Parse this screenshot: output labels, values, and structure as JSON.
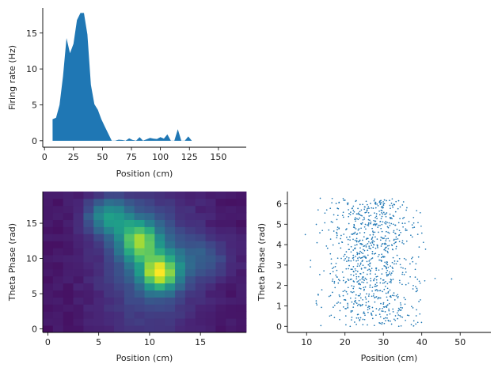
{
  "chart_data": [
    {
      "type": "area",
      "xlabel": "Position (cm)",
      "ylabel": "Firing rate (Hz)",
      "xlim": [
        -1.5,
        174
      ],
      "ylim": [
        -0.9,
        18.5
      ],
      "xticks": [
        0,
        25,
        50,
        75,
        100,
        125,
        150
      ],
      "yticks": [
        0,
        5,
        10,
        15
      ],
      "color": "#1f77b4",
      "x": [
        7,
        10,
        13,
        16,
        19,
        22,
        25,
        28,
        31,
        34,
        37,
        40,
        43,
        46,
        49,
        52,
        55,
        58,
        61,
        64,
        67,
        70,
        73,
        76,
        79,
        82,
        85,
        88,
        91,
        94,
        97,
        100,
        103,
        106,
        109,
        112,
        115,
        118,
        121,
        124,
        127
      ],
      "y": [
        3.0,
        3.2,
        5.0,
        9.0,
        14.3,
        12.2,
        13.5,
        16.8,
        17.8,
        17.8,
        14.8,
        7.8,
        5.1,
        4.3,
        3.0,
        2.0,
        1.0,
        0.0,
        0.0,
        0.15,
        0.1,
        0.0,
        0.35,
        0.1,
        0.0,
        0.5,
        0.0,
        0.2,
        0.4,
        0.3,
        0.25,
        0.5,
        0.3,
        0.9,
        0.0,
        0.0,
        1.6,
        0.0,
        0.0,
        0.6,
        0.0
      ]
    },
    {
      "type": "heatmap",
      "xlabel": "Position (cm)",
      "ylabel": "Theta Phase (rad)",
      "xticks": [
        0,
        5,
        10,
        15
      ],
      "yticks": [
        0,
        5,
        10,
        15
      ],
      "colormap": "viridis",
      "grid_size": [
        20,
        20
      ],
      "peaks": [
        {
          "x": 11,
          "y": 8,
          "amplitude": 1.0,
          "sx": 1.3,
          "sy": 1.8
        },
        {
          "x": 9,
          "y": 12.5,
          "amplitude": 0.85,
          "sx": 1.4,
          "sy": 2.0
        },
        {
          "x": 6,
          "y": 16,
          "amplitude": 0.6,
          "sx": 1.5,
          "sy": 1.8
        },
        {
          "x": 10,
          "y": 9.5,
          "amplitude": 0.3,
          "sx": 3.5,
          "sy": 7.5
        },
        {
          "x": 15,
          "y": 10,
          "amplitude": 0.25,
          "sx": 2.2,
          "sy": 2.0
        }
      ]
    },
    {
      "type": "scatter",
      "xlabel": "Position (cm)",
      "ylabel": "Theta Phase (rad)",
      "xlim": [
        5,
        58
      ],
      "ylim": [
        -0.3,
        6.6
      ],
      "xticks": [
        10,
        20,
        30,
        40,
        50
      ],
      "yticks": [
        0,
        1,
        2,
        3,
        4,
        5,
        6
      ],
      "color": "#1f77b4",
      "n_points": 900,
      "x_range": [
        7,
        57
      ],
      "y_range": [
        0,
        6.28
      ]
    }
  ]
}
